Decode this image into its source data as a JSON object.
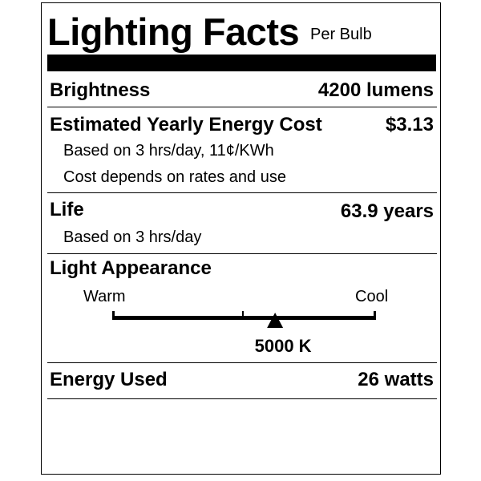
{
  "title": "Lighting Facts",
  "subtitle": "Per Bulb",
  "brightness": {
    "label": "Brightness",
    "value": "4200 lumens"
  },
  "energy_cost": {
    "label": "Estimated Yearly Energy Cost",
    "value": "$3.13",
    "notes": [
      "Based on 3 hrs/day, 11¢/KWh",
      "Cost depends on rates and use"
    ]
  },
  "life": {
    "label": "Life",
    "value": "63.9 years",
    "note": "Based on 3 hrs/day"
  },
  "light_appearance": {
    "label": "Light Appearance",
    "warm_label": "Warm",
    "cool_label": "Cool",
    "value": "5000 K",
    "marker_fraction": 0.62
  },
  "energy_used": {
    "label": "Energy Used",
    "value": "26 watts"
  }
}
